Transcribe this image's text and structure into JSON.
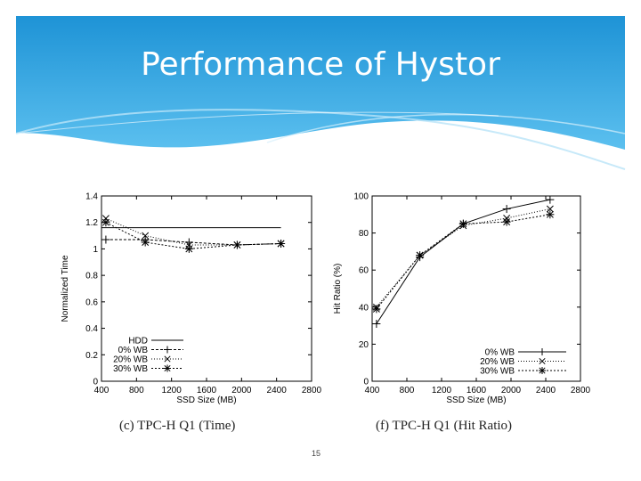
{
  "slide": {
    "title": "Performance of Hystor",
    "page_number": "15"
  },
  "colors": {
    "banner_top": "#1e93d6",
    "banner_bottom": "#5cc0ef",
    "ink": "#000000"
  },
  "chart_data": [
    {
      "type": "line",
      "caption": "(c) TPC-H Q1 (Time)",
      "xlabel": "SSD Size (MB)",
      "ylabel": "Normalized Time",
      "xlim": [
        400,
        2800
      ],
      "ylim": [
        0,
        1.4
      ],
      "xticks": [
        400,
        800,
        1200,
        1600,
        2000,
        2400,
        2800
      ],
      "yticks": [
        0,
        0.2,
        0.4,
        0.6,
        0.8,
        1,
        1.2,
        1.4
      ],
      "ytick_labels": [
        "0",
        "0.2",
        "0.4",
        "0.6",
        "0.8",
        "1",
        "1.2",
        "1.4"
      ],
      "legend_position": "bottom-left",
      "series": [
        {
          "name": "HDD",
          "marker": "none",
          "dash": "",
          "x": [
            400,
            2450
          ],
          "y": [
            1.16,
            1.16
          ]
        },
        {
          "name": "0% WB",
          "marker": "plus",
          "dash": "3,2",
          "x": [
            450,
            900,
            1400,
            1950,
            2450
          ],
          "y": [
            1.07,
            1.07,
            1.05,
            1.03,
            1.04
          ]
        },
        {
          "name": "20% WB",
          "marker": "x",
          "dash": "1,2",
          "x": [
            450,
            900,
            1400,
            1950,
            2450
          ],
          "y": [
            1.23,
            1.1,
            1.03,
            1.03,
            1.04
          ]
        },
        {
          "name": "30% WB",
          "marker": "star",
          "dash": "2,2",
          "x": [
            450,
            900,
            1400,
            1950,
            2450
          ],
          "y": [
            1.2,
            1.05,
            1.0,
            1.03,
            1.04
          ]
        }
      ]
    },
    {
      "type": "line",
      "caption": "(f) TPC-H Q1 (Hit Ratio)",
      "xlabel": "SSD Size (MB)",
      "ylabel": "Hit Ratio (%)",
      "xlim": [
        400,
        2800
      ],
      "ylim": [
        0,
        100
      ],
      "xticks": [
        400,
        800,
        1200,
        1600,
        2000,
        2400,
        2800
      ],
      "yticks": [
        0,
        20,
        40,
        60,
        80,
        100
      ],
      "ytick_labels": [
        "0",
        "20",
        "40",
        "60",
        "80",
        "100"
      ],
      "legend_position": "bottom-right",
      "series": [
        {
          "name": "0% WB",
          "marker": "plus",
          "dash": "",
          "x": [
            450,
            950,
            1450,
            1950,
            2450
          ],
          "y": [
            31,
            67,
            85,
            93,
            98
          ]
        },
        {
          "name": "20% WB",
          "marker": "x",
          "dash": "1,2",
          "x": [
            450,
            950,
            1450,
            1950,
            2450
          ],
          "y": [
            40,
            68,
            84,
            88,
            93
          ]
        },
        {
          "name": "30% WB",
          "marker": "star",
          "dash": "2,2",
          "x": [
            450,
            950,
            1450,
            1950,
            2450
          ],
          "y": [
            39,
            68,
            85,
            86,
            90
          ]
        }
      ]
    }
  ]
}
